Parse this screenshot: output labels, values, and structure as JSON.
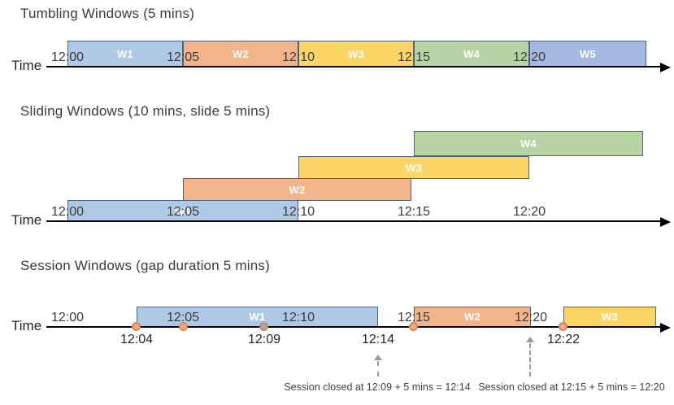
{
  "palette": {
    "window_blue": "#ADC9E6",
    "window_orange": "#F3B489",
    "window_yellow": "#FBD666",
    "window_green": "#B7D3A3",
    "window_periwinkle": "#A3B9E1",
    "box_border": "#4A6580",
    "axis_color": "#000000",
    "event_dot_fill": "#F2A983",
    "event_dot_border": "#D9855C",
    "closed_event_dot_fill": "#A9A4AE",
    "annotation_gray": "#9A9A9A",
    "text_dark": "#3B3B3B"
  },
  "tumbling": {
    "title": "Tumbling Windows (5 mins)",
    "axis_label": "Time",
    "ticks": [
      "12:00",
      "12:05",
      "12:10",
      "12:15",
      "12:20"
    ],
    "windows": [
      {
        "label": "W1",
        "start": "12:00",
        "end": "12:05"
      },
      {
        "label": "W2",
        "start": "12:05",
        "end": "12:10"
      },
      {
        "label": "W3",
        "start": "12:10",
        "end": "12:15"
      },
      {
        "label": "W4",
        "start": "12:15",
        "end": "12:20"
      },
      {
        "label": "W5",
        "start": "12:20"
      }
    ]
  },
  "sliding": {
    "title": "Sliding Windows (10 mins, slide 5 mins)",
    "axis_label": "Time",
    "ticks": [
      "12:00",
      "12:05",
      "12:10",
      "12:15",
      "12:20"
    ],
    "windows": [
      {
        "label": "W1",
        "start": "12:00",
        "end": "12:10"
      },
      {
        "label": "W2",
        "start": "12:05",
        "end": "12:15"
      },
      {
        "label": "W3",
        "start": "12:10",
        "end": "12:20"
      },
      {
        "label": "W4",
        "start": "12:15"
      }
    ]
  },
  "session": {
    "title": "Session Windows (gap duration 5 mins)",
    "axis_label": "Time",
    "ticks": [
      "12:00",
      "12:05",
      "12:10",
      "12:15",
      "12:20"
    ],
    "windows": [
      {
        "label": "W1",
        "start": "12:04",
        "end": "12:14"
      },
      {
        "label": "W2",
        "start": "12:15",
        "end": "12:20"
      },
      {
        "label": "W3",
        "start": "12:22"
      }
    ],
    "event_labels": [
      "12:04",
      "12:09",
      "12:14",
      "12:22"
    ],
    "annotations": [
      "Session closed at 12:09 + 5 mins = 12:14",
      "Session closed at 12:15 + 5 mins = 12:20"
    ]
  }
}
